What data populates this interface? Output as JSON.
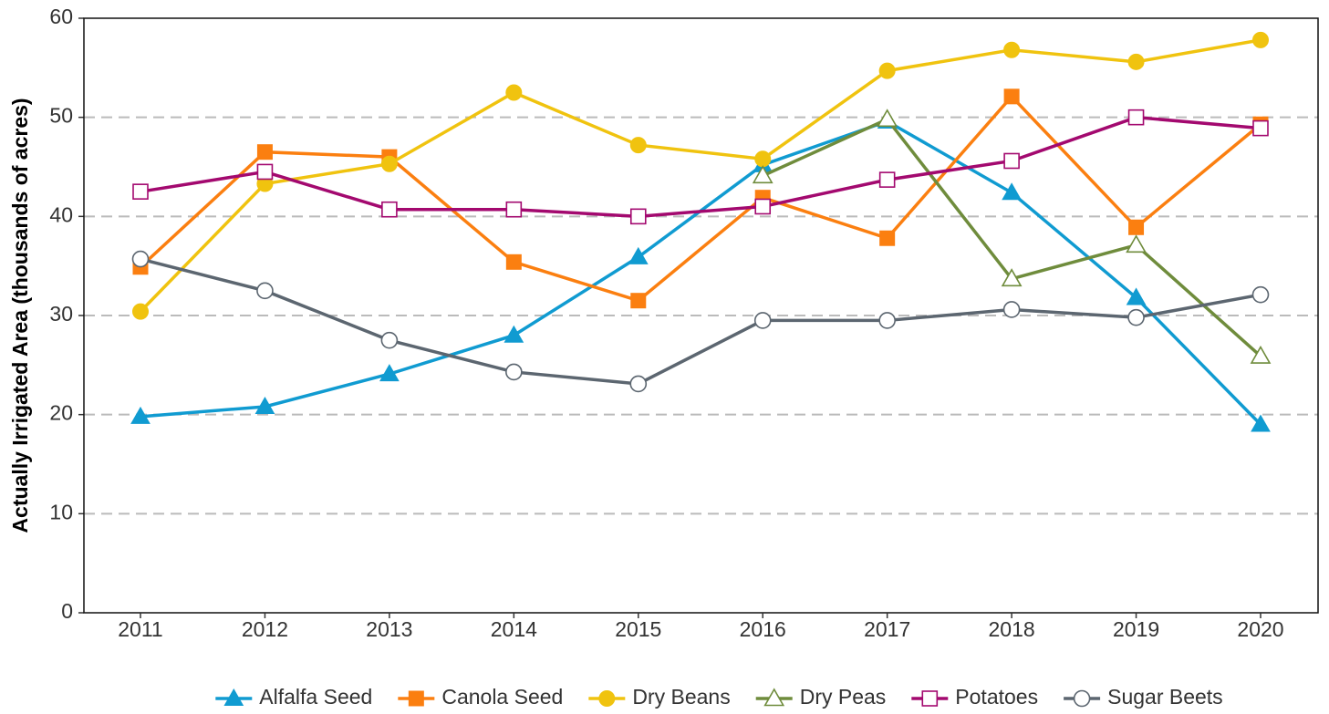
{
  "chart_data": {
    "type": "line",
    "y_label": "Actually Irrigated Area (thousands of acres)",
    "categories": [
      "2011",
      "2012",
      "2013",
      "2014",
      "2015",
      "2016",
      "2017",
      "2018",
      "2019",
      "2020"
    ],
    "ylim": [
      0,
      60
    ],
    "yticks": [
      0,
      10,
      20,
      30,
      40,
      50,
      60
    ],
    "grid": true,
    "legend": "bottom",
    "series": [
      {
        "name": "Alfalfa Seed",
        "color": "#109bd1",
        "marker": "triangle",
        "filled": true,
        "values": [
          19.8,
          20.8,
          24.1,
          28.0,
          35.9,
          45.2,
          49.6,
          42.4,
          31.8,
          19.0
        ]
      },
      {
        "name": "Canola Seed",
        "color": "#fb7f10",
        "marker": "square",
        "filled": true,
        "values": [
          34.9,
          46.5,
          46.0,
          35.4,
          31.5,
          41.9,
          37.8,
          52.1,
          38.9,
          49.3
        ]
      },
      {
        "name": "Dry Beans",
        "color": "#f0c30f",
        "marker": "circle",
        "filled": true,
        "values": [
          30.4,
          43.3,
          45.3,
          52.5,
          47.2,
          45.8,
          54.7,
          56.8,
          55.6,
          57.8
        ]
      },
      {
        "name": "Dry Peas",
        "color": "#6f8c3c",
        "marker": "triangle",
        "filled": false,
        "values": [
          null,
          null,
          null,
          null,
          null,
          44.1,
          49.8,
          33.7,
          37.1,
          25.9
        ]
      },
      {
        "name": "Potatoes",
        "color": "#a3096f",
        "marker": "square",
        "filled": false,
        "values": [
          42.5,
          44.5,
          40.7,
          40.7,
          40.0,
          41.0,
          43.7,
          45.6,
          50.0,
          48.9
        ]
      },
      {
        "name": "Sugar Beets",
        "color": "#5c6670",
        "marker": "circle",
        "filled": false,
        "values": [
          35.7,
          32.5,
          27.5,
          24.3,
          23.1,
          29.5,
          29.5,
          30.6,
          29.8,
          32.1
        ]
      }
    ]
  }
}
